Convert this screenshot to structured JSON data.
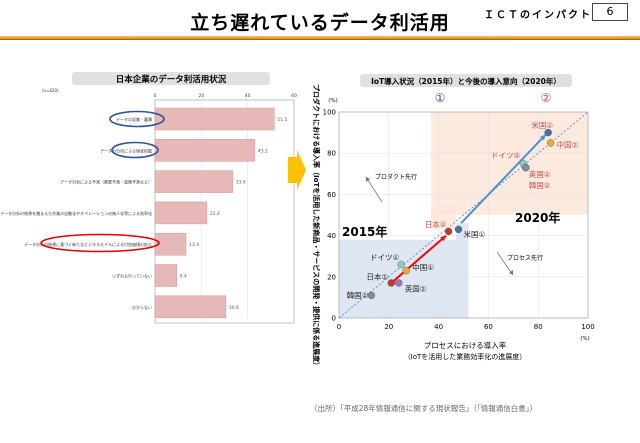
{
  "header": {
    "title": "立ち遅れているデータ利活用",
    "section": "ＩＣＴのインパクト",
    "page_number": "6"
  },
  "left_chart": {
    "chart_data": {
      "type": "bar",
      "orientation": "horizontal",
      "title": "日本企業のデータ利活用状況",
      "n_label": "(n=620)",
      "xlim": [
        0,
        60
      ],
      "xticks": [
        "0",
        "20",
        "40",
        "60"
      ],
      "categories": [
        "データの収集・蓄積",
        "データの分析による現状把握",
        "データ分析による予測（需要予測・故障予測など）",
        "データ分析の結果を踏まえた作業の自動化やオペレーションの無人化等による効率化",
        "データ分析の結果に基づく新たなビジネスモデルによる付加価値の拡大",
        "いずれも行っていない",
        "分からない"
      ],
      "values": [
        51.5,
        43.1,
        33.6,
        22.4,
        13.4,
        9.4,
        30.6
      ],
      "value_labels": [
        "51.5",
        "43.1",
        "33.6",
        "22.4",
        "13.4",
        "9.4",
        "30.6"
      ],
      "highlight": {
        "blue": [
          0,
          1
        ],
        "red": [
          4
        ]
      },
      "colors": {
        "bar": "#e6b8b7",
        "bar_edge": "#d99694",
        "blue_ring": "#2f5597",
        "red_ring": "#e00000"
      }
    }
  },
  "right_chart": {
    "chart_data": {
      "type": "scatter",
      "title": "IoT導入状況（2015年）と今後の導入意向（2020年）",
      "xlabel": "プロセスにおける導入率",
      "xlabel_sub": "（IoTを活用した業務効率化の進展度）",
      "ylabel": "プロダクトにおける導入率（IoTを活用した新商品・サービスの開発・提供に係る進展度）",
      "unit": "(%)",
      "xlim": [
        0,
        100
      ],
      "ylim": [
        0,
        100
      ],
      "xticks": [
        "0",
        "20",
        "40",
        "60",
        "80",
        "100"
      ],
      "yticks": [
        "0",
        "20",
        "40",
        "60",
        "80",
        "100"
      ],
      "column_markers": [
        "①",
        "②"
      ],
      "region_labels": [
        "2015年",
        "2020年"
      ],
      "annotations": [
        "プロダクト先行",
        "プロセス先行"
      ],
      "points": [
        {
          "label": "韓国①",
          "x": 13,
          "y": 11,
          "color": "#7f8c9a"
        },
        {
          "label": "日本①",
          "x": 21,
          "y": 17,
          "color": "#c0392b"
        },
        {
          "label": "英国①",
          "x": 24,
          "y": 17,
          "color": "#8e7cc3"
        },
        {
          "label": "ドイツ①",
          "x": 25,
          "y": 26,
          "color": "#8fc9c0"
        },
        {
          "label": "中国①",
          "x": 27,
          "y": 23,
          "color": "#e0b030"
        },
        {
          "label": "日本②",
          "x": 44,
          "y": 42,
          "color": "#c0392b"
        },
        {
          "label": "米国①",
          "x": 48,
          "y": 43,
          "color": "#4a6fa5"
        },
        {
          "label": "ドイツ②",
          "x": 74,
          "y": 75,
          "color": "#8fc9c0"
        },
        {
          "label": "英国②",
          "x": 75,
          "y": 73,
          "color": "#8e7cc3"
        },
        {
          "label": "韓国②",
          "x": 75,
          "y": 73,
          "color": "#7f8c9a"
        },
        {
          "label": "米国②",
          "x": 84,
          "y": 90,
          "color": "#4a6fa5"
        },
        {
          "label": "中国②",
          "x": 85,
          "y": 85,
          "color": "#e0b030"
        }
      ],
      "arrows": [
        {
          "from": [
            21,
            17
          ],
          "to": [
            43,
            40
          ],
          "color": "#ff0000"
        },
        {
          "from": [
            49,
            46
          ],
          "to": [
            83,
            89
          ],
          "color": "#4a8fe0"
        }
      ]
    }
  },
  "footer": {
    "source": "（出所）「平成28年情報通信に関する現状報告」（「情報通信白書」）"
  }
}
